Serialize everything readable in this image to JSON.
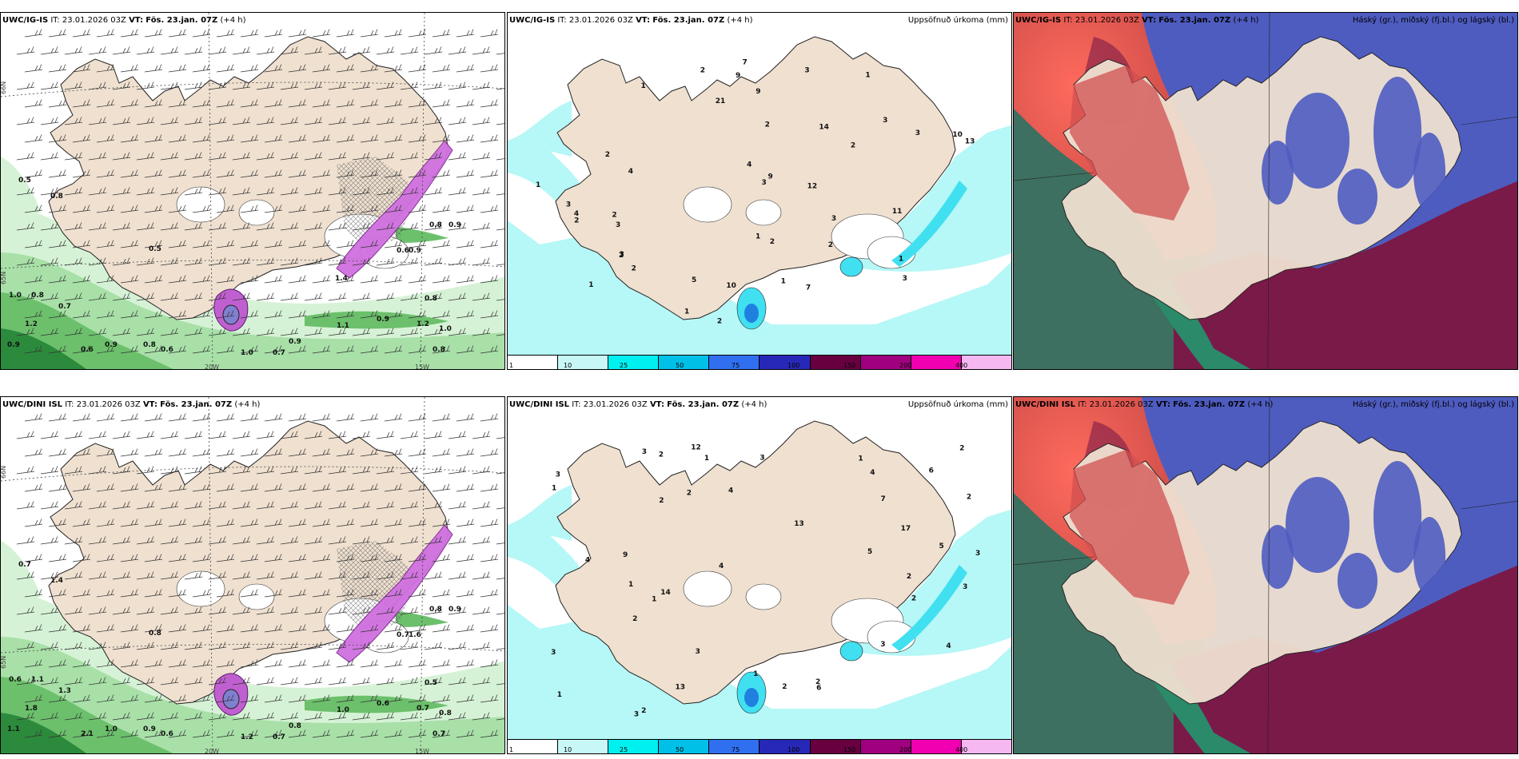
{
  "panels": [
    {
      "model": "UWC/IG-IS",
      "it_label": "IT:",
      "it": "23.01.2026 03Z",
      "vt_label": "VT:",
      "vt": "Fös. 23.jan. 07Z",
      "lead": "(+4 h)",
      "right": ""
    },
    {
      "model": "UWC/IG-IS",
      "it_label": "IT:",
      "it": "23.01.2026 03Z",
      "vt_label": "VT:",
      "vt": "Fös. 23.jan. 07Z",
      "lead": "(+4 h)",
      "right": "Uppsöfnuð úrkoma (mm)"
    },
    {
      "model": "UWC/IG-IS",
      "it_label": "IT:",
      "it": "23.01.2026 03Z",
      "vt_label": "VT:",
      "vt": "Fös. 23.jan. 07Z",
      "lead": "(+4 h)",
      "right": "Háský (gr.), miðský (fj.bl.) og lágský (bl.)"
    },
    {
      "model": "UWC/DINI ISL",
      "it_label": "IT:",
      "it": "23.01.2026 03Z",
      "vt_label": "VT:",
      "vt": "Fös. 23.jan. 07Z",
      "lead": "(+4 h)",
      "right": ""
    },
    {
      "model": "UWC/DINI ISL",
      "it_label": "IT:",
      "it": "23.01.2026 03Z",
      "vt_label": "VT:",
      "vt": "Fös. 23.jan. 07Z",
      "lead": "(+4 h)",
      "right": "Uppsöfnuð úrkoma (mm)"
    },
    {
      "model": "UWC/DINI ISL",
      "it_label": "IT:",
      "it": "23.01.2026 03Z",
      "vt_label": "VT:",
      "vt": "Fös. 23.jan. 07Z",
      "lead": "(+4 h)",
      "right": "Háský (gr.), miðský (fj.bl.) og lágský (bl.)"
    }
  ],
  "axis_labels": {
    "lat66": "66N",
    "lat65": "65N",
    "lon20": "20W",
    "lon15": "15W"
  },
  "colorbar": {
    "labels": [
      "1",
      "10",
      "25",
      "50",
      "75",
      "100",
      "150",
      "200",
      "400"
    ],
    "colors": [
      "#c8f7f7",
      "#00f0f0",
      "#00c0e8",
      "#3070f0",
      "#2828b8",
      "#680040",
      "#a00080",
      "#f000b0",
      "#f5b8f0"
    ]
  },
  "wind_values_top": [
    "0.5",
    "0.8",
    "0.5",
    "1.0",
    "0.8",
    "0.7",
    "1.2",
    "0.9",
    "0.8",
    "1.0",
    "0.6",
    "0.6",
    "0.9",
    "0.7",
    "1.1",
    "0.9",
    "0.9",
    "1.2",
    "1.0",
    "0.8",
    "0.9",
    "0.6",
    "0.8",
    "0.9",
    "0.8",
    "1.4"
  ],
  "wind_values_bottom": [
    "0.7",
    "1.4",
    "0.8",
    "0.6",
    "1.1",
    "1.3",
    "1.8",
    "1.0",
    "0.9",
    "1.2",
    "2.1",
    "0.6",
    "1.1",
    "0.7",
    "1.0",
    "0.8",
    "0.6",
    "0.7",
    "0.8",
    "0.5",
    "0.9",
    "0.7",
    "0.8",
    "1.6",
    "0.7"
  ],
  "precip_values_top": [
    "1",
    "1",
    "1",
    "3",
    "2",
    "4",
    "3",
    "3",
    "3",
    "2",
    "3",
    "7",
    "2",
    "3",
    "2",
    "2",
    "3",
    "1",
    "2",
    "1",
    "7",
    "9",
    "21",
    "9",
    "4",
    "5",
    "4",
    "3",
    "2",
    "3",
    "2",
    "2",
    "1",
    "1",
    "1",
    "2",
    "10",
    "12",
    "14",
    "11",
    "13",
    "9",
    "10",
    "2"
  ],
  "precip_values_bottom": [
    "2",
    "1",
    "2",
    "3",
    "3",
    "1",
    "2",
    "2",
    "1",
    "5",
    "1",
    "14",
    "2",
    "3",
    "3",
    "2",
    "3",
    "3",
    "6",
    "6",
    "3",
    "2",
    "4",
    "4",
    "17",
    "4",
    "3",
    "3",
    "2",
    "4",
    "2",
    "1",
    "2",
    "13",
    "12",
    "7",
    "13",
    "9",
    "4",
    "2",
    "1",
    "1",
    "5"
  ]
}
